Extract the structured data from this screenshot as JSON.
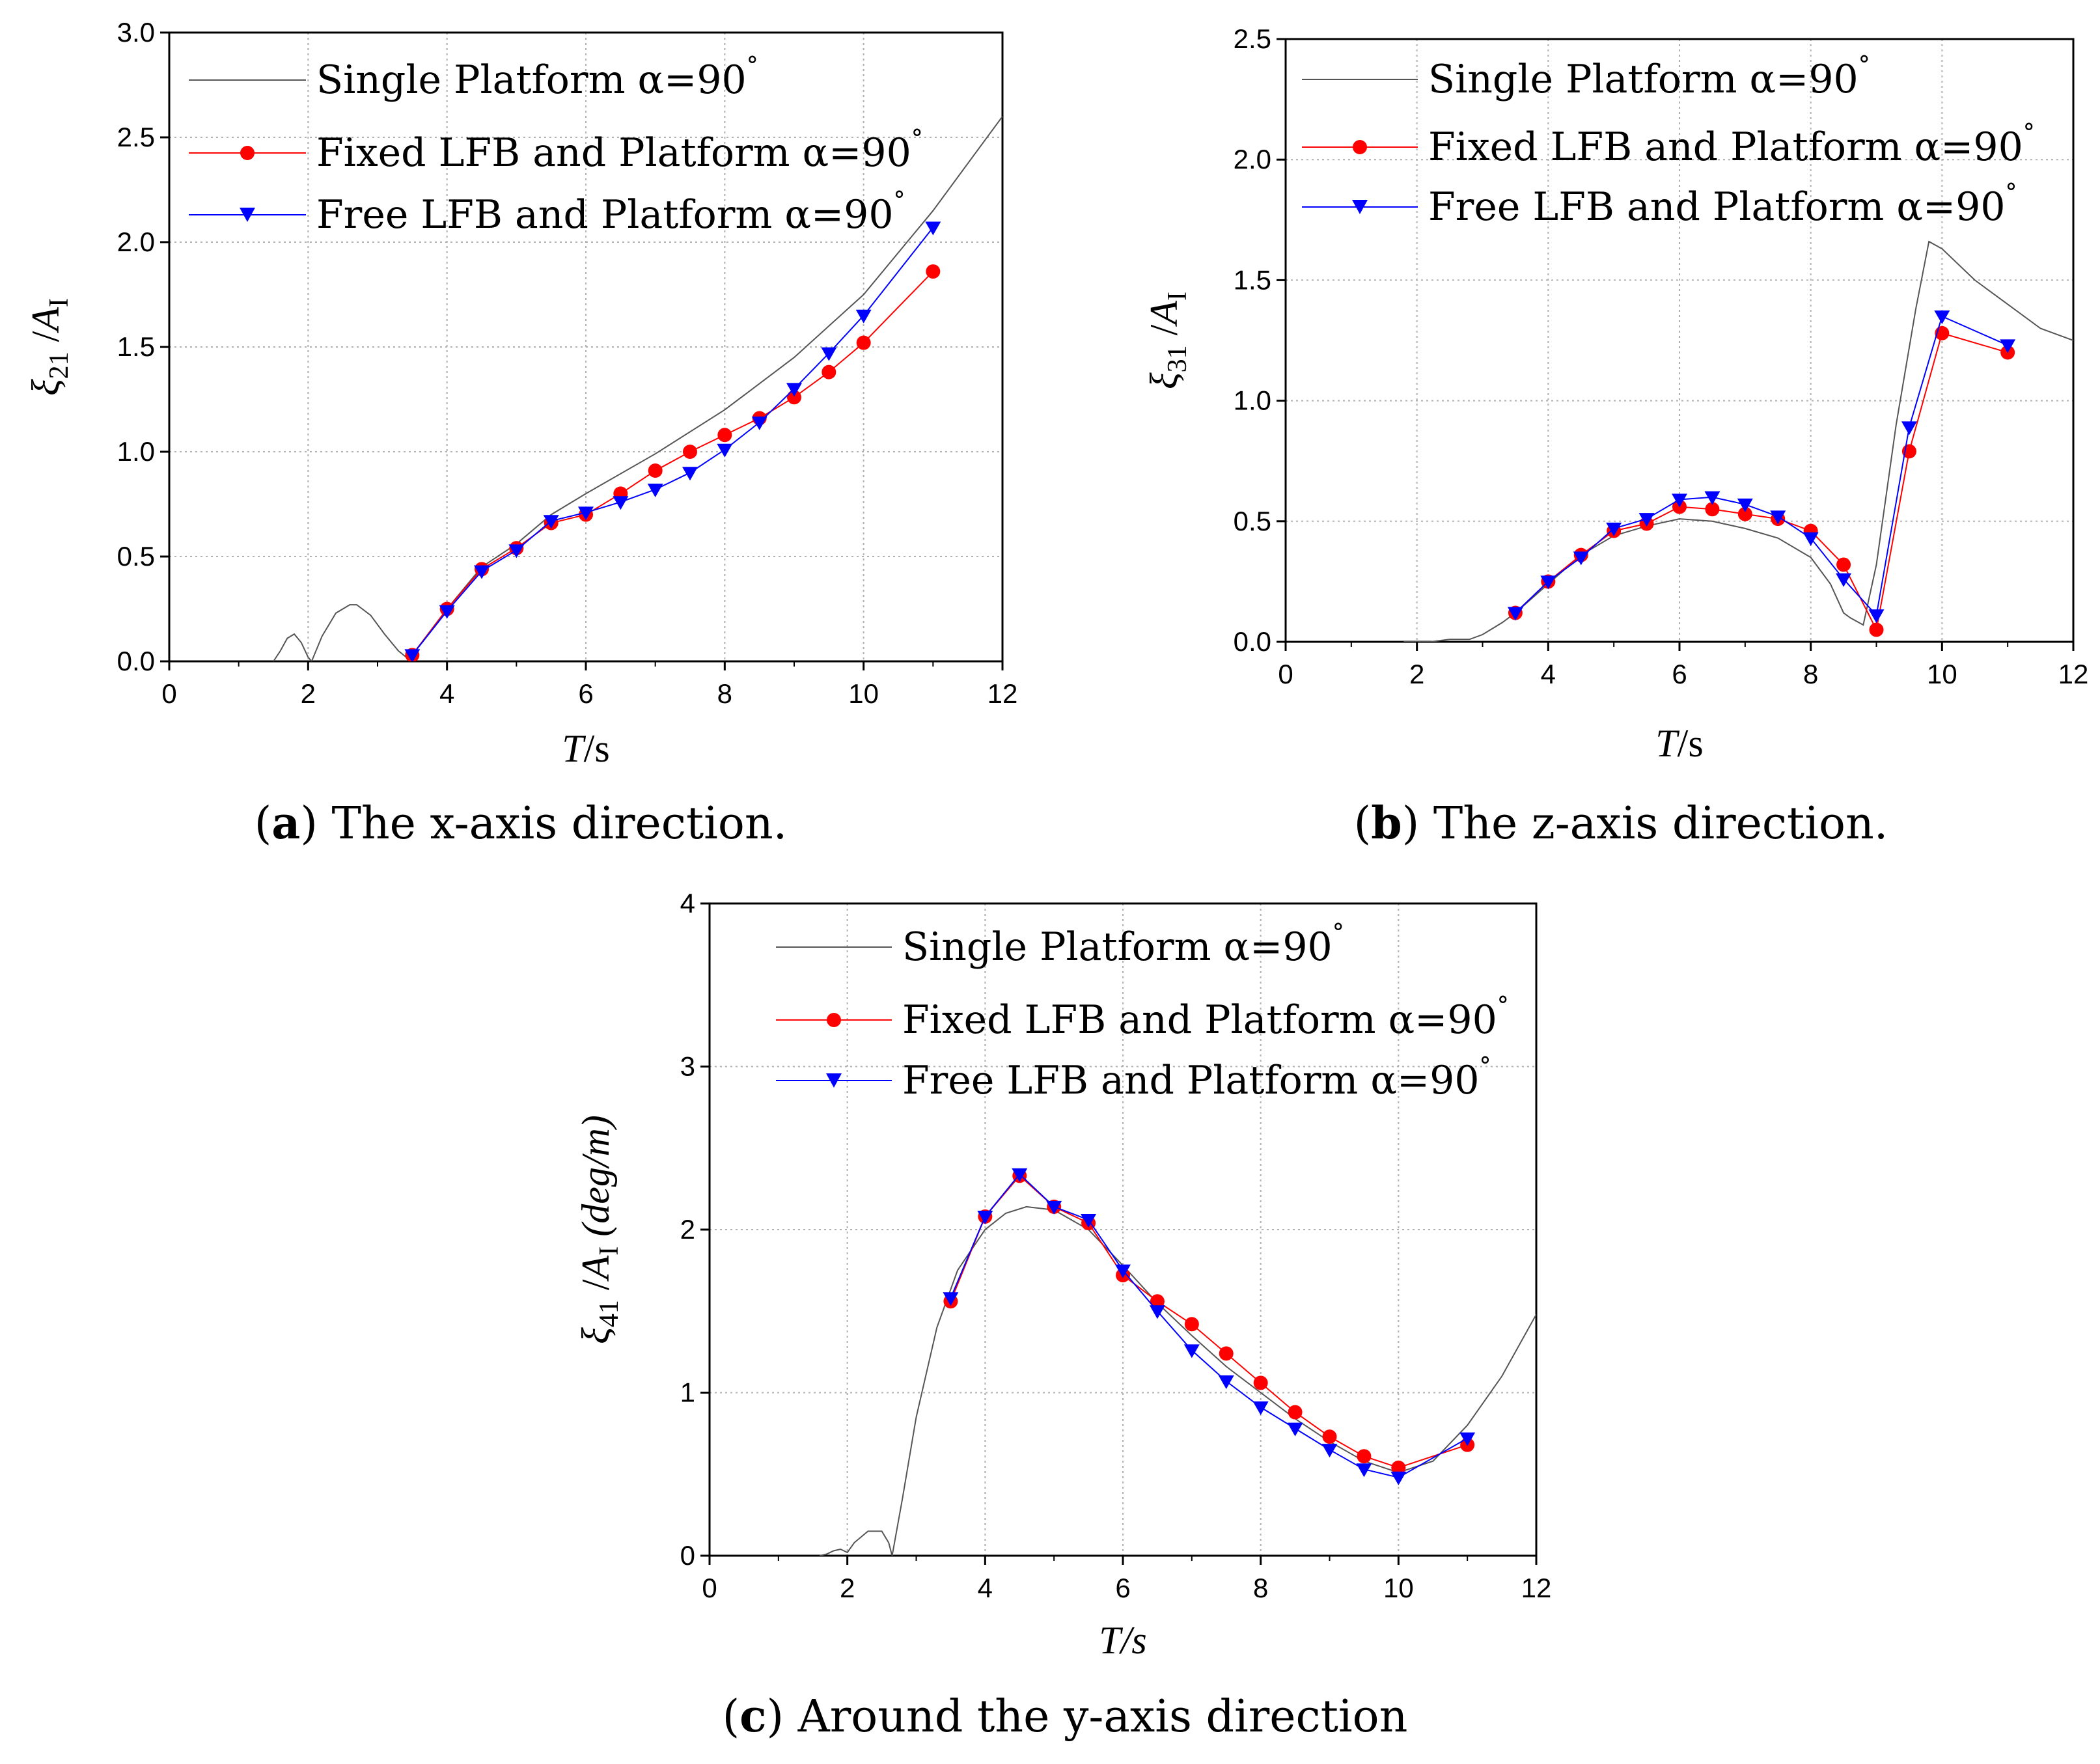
{
  "figure": {
    "symbol_degree": "°"
  },
  "series_style": {
    "Single Platform": {
      "color": "#555555",
      "marker": "none"
    },
    "Fixed LFB and Platform": {
      "color": "#ff0000",
      "marker": "circle"
    },
    "Free LFB and Platform": {
      "color": "#0000ff",
      "marker": "triangle-down"
    }
  },
  "chart_data": [
    {
      "id": "a",
      "type": "line",
      "caption": {
        "letter": "a",
        "open": "(",
        "close": ")",
        "text": " The x-axis direction."
      },
      "ylabel": {
        "main": "ξ",
        "sub": "21",
        "sep": " /",
        "A": "A",
        "Asub": "I",
        "units": ""
      },
      "xlabel": {
        "T": "T",
        "rest": "/s"
      },
      "xlim": [
        0,
        12
      ],
      "ylim": [
        0,
        3.0
      ],
      "xticks": [
        "0",
        "2",
        "4",
        "6",
        "8",
        "10",
        "12"
      ],
      "xtick_values": [
        0,
        2,
        4,
        6,
        8,
        10,
        12
      ],
      "yticks": [
        "0.0",
        "0.5",
        "1.0",
        "1.5",
        "2.0",
        "2.5",
        "3.0"
      ],
      "ytick_values": [
        0,
        0.5,
        1.0,
        1.5,
        2.0,
        2.5,
        3.0
      ],
      "legend_position": "top-left",
      "series": [
        {
          "name": "Single Platform",
          "label": "Single Platform α=90",
          "x": [
            1.5,
            1.6,
            1.7,
            1.8,
            1.9,
            2.0,
            2.05,
            2.2,
            2.4,
            2.6,
            2.7,
            2.9,
            3.1,
            3.3,
            3.45,
            3.5,
            4.0,
            4.5,
            5.0,
            5.5,
            6.0,
            7.0,
            8.0,
            9.0,
            10.0,
            11.0,
            12.0
          ],
          "y": [
            0.0,
            0.05,
            0.11,
            0.13,
            0.09,
            0.02,
            0.0,
            0.12,
            0.23,
            0.27,
            0.27,
            0.22,
            0.13,
            0.05,
            0.01,
            0.03,
            0.25,
            0.45,
            0.56,
            0.7,
            0.8,
            0.99,
            1.2,
            1.45,
            1.75,
            2.15,
            2.6
          ]
        },
        {
          "name": "Fixed LFB and Platform",
          "label": "Fixed LFB and Platform α=90",
          "x": [
            3.5,
            4.0,
            4.5,
            5.0,
            5.5,
            6.0,
            6.5,
            7.0,
            7.5,
            8.0,
            8.5,
            9.0,
            9.5,
            10.0,
            11.0
          ],
          "y": [
            0.03,
            0.25,
            0.44,
            0.54,
            0.66,
            0.7,
            0.8,
            0.91,
            1.0,
            1.08,
            1.16,
            1.26,
            1.38,
            1.52,
            1.86
          ]
        },
        {
          "name": "Free LFB and Platform",
          "label": "Free LFB and Platform α=90",
          "x": [
            3.5,
            4.0,
            4.5,
            5.0,
            5.5,
            6.0,
            6.5,
            7.0,
            7.5,
            8.0,
            8.5,
            9.0,
            9.5,
            10.0,
            11.0
          ],
          "y": [
            0.03,
            0.24,
            0.43,
            0.53,
            0.67,
            0.71,
            0.76,
            0.82,
            0.9,
            1.01,
            1.14,
            1.3,
            1.47,
            1.65,
            2.07
          ]
        }
      ]
    },
    {
      "id": "b",
      "type": "line",
      "caption": {
        "letter": "b",
        "open": "(",
        "close": ")",
        "text": " The z-axis direction."
      },
      "ylabel": {
        "main": "ξ",
        "sub": "31",
        "sep": " /",
        "A": "A",
        "Asub": "I",
        "units": ""
      },
      "xlabel": {
        "T": "T",
        "rest": "/s"
      },
      "xlim": [
        0,
        12
      ],
      "ylim": [
        0,
        2.5
      ],
      "xticks": [
        "0",
        "2",
        "4",
        "6",
        "8",
        "10",
        "12"
      ],
      "xtick_values": [
        0,
        2,
        4,
        6,
        8,
        10,
        12
      ],
      "yticks": [
        "0.0",
        "0.5",
        "1.0",
        "1.5",
        "2.0",
        "2.5"
      ],
      "ytick_values": [
        0,
        0.5,
        1.0,
        1.5,
        2.0,
        2.5
      ],
      "legend_position": "top-left",
      "series": [
        {
          "name": "Single Platform",
          "label": "Single Platform α=90",
          "x": [
            1.8,
            2.2,
            2.5,
            2.8,
            3.0,
            3.3,
            3.5,
            4.0,
            4.5,
            5.0,
            5.5,
            6.0,
            6.5,
            7.0,
            7.5,
            8.0,
            8.3,
            8.5,
            8.6,
            8.8,
            9.0,
            9.3,
            9.6,
            9.8,
            10.0,
            10.5,
            11.0,
            11.5,
            12.0
          ],
          "y": [
            0.0,
            0.0,
            0.01,
            0.01,
            0.03,
            0.08,
            0.12,
            0.24,
            0.36,
            0.44,
            0.48,
            0.51,
            0.5,
            0.47,
            0.43,
            0.35,
            0.24,
            0.12,
            0.1,
            0.07,
            0.32,
            0.9,
            1.38,
            1.66,
            1.63,
            1.5,
            1.4,
            1.3,
            1.25
          ]
        },
        {
          "name": "Fixed LFB and Platform",
          "label": "Fixed LFB and Platform α=90",
          "x": [
            3.5,
            4.0,
            4.5,
            5.0,
            5.5,
            6.0,
            6.5,
            7.0,
            7.5,
            8.0,
            8.5,
            9.0,
            9.5,
            10.0,
            11.0
          ],
          "y": [
            0.12,
            0.25,
            0.36,
            0.46,
            0.49,
            0.56,
            0.55,
            0.53,
            0.51,
            0.46,
            0.32,
            0.05,
            0.79,
            1.28,
            1.2
          ]
        },
        {
          "name": "Free LFB and Platform",
          "label": "Free LFB and Platform α=90",
          "x": [
            3.5,
            4.0,
            4.5,
            5.0,
            5.5,
            6.0,
            6.5,
            7.0,
            7.5,
            8.0,
            8.5,
            9.0,
            9.5,
            10.0,
            11.0
          ],
          "y": [
            0.12,
            0.25,
            0.35,
            0.47,
            0.51,
            0.59,
            0.6,
            0.57,
            0.52,
            0.43,
            0.26,
            0.11,
            0.89,
            1.35,
            1.23
          ]
        }
      ]
    },
    {
      "id": "c",
      "type": "line",
      "caption": {
        "letter": "c",
        "open": "(",
        "close": ")",
        "text": " Around the y-axis direction"
      },
      "ylabel": {
        "main": "ξ",
        "sub": "41",
        "sep": " /",
        "A": "A",
        "Asub": "I",
        "units": "  (deg/m)"
      },
      "xlabel": {
        "T": "T/s",
        "rest": ""
      },
      "xlim": [
        0,
        12
      ],
      "ylim": [
        0,
        4
      ],
      "xticks": [
        "0",
        "2",
        "4",
        "6",
        "8",
        "10",
        "12"
      ],
      "xtick_values": [
        0,
        2,
        4,
        6,
        8,
        10,
        12
      ],
      "yticks": [
        "0",
        "1",
        "2",
        "3",
        "4"
      ],
      "ytick_values": [
        0,
        1,
        2,
        3,
        4
      ],
      "legend_position": "top-left",
      "series": [
        {
          "name": "Single Platform",
          "label": "Single Platform α=90",
          "x": [
            1.6,
            1.7,
            1.8,
            1.9,
            2.0,
            2.1,
            2.3,
            2.5,
            2.6,
            2.65,
            2.8,
            3.0,
            3.3,
            3.6,
            4.0,
            4.3,
            4.6,
            5.0,
            5.5,
            6.0,
            6.5,
            7.0,
            7.5,
            8.0,
            8.5,
            9.0,
            9.5,
            10.0,
            10.5,
            11.0,
            11.5,
            12.0
          ],
          "y": [
            0.0,
            0.01,
            0.03,
            0.04,
            0.02,
            0.08,
            0.15,
            0.15,
            0.08,
            0.0,
            0.35,
            0.85,
            1.4,
            1.75,
            2.0,
            2.1,
            2.14,
            2.12,
            2.0,
            1.78,
            1.55,
            1.35,
            1.16,
            1.0,
            0.84,
            0.7,
            0.58,
            0.51,
            0.58,
            0.8,
            1.1,
            1.48
          ]
        },
        {
          "name": "Fixed LFB and Platform",
          "label": "Fixed LFB and Platform α=90",
          "x": [
            3.5,
            4.0,
            4.5,
            5.0,
            5.5,
            6.0,
            6.5,
            7.0,
            7.5,
            8.0,
            8.5,
            9.0,
            9.5,
            10.0,
            11.0
          ],
          "y": [
            1.56,
            2.08,
            2.33,
            2.14,
            2.04,
            1.72,
            1.56,
            1.42,
            1.24,
            1.06,
            0.88,
            0.73,
            0.61,
            0.54,
            0.68
          ]
        },
        {
          "name": "Free LFB and Platform",
          "label": "Free LFB and Platform α=90",
          "x": [
            3.5,
            4.0,
            4.5,
            5.0,
            5.5,
            6.0,
            6.5,
            7.0,
            7.5,
            8.0,
            8.5,
            9.0,
            9.5,
            10.0,
            11.0
          ],
          "y": [
            1.58,
            2.08,
            2.34,
            2.14,
            2.06,
            1.75,
            1.5,
            1.26,
            1.07,
            0.91,
            0.78,
            0.65,
            0.53,
            0.48,
            0.72
          ]
        }
      ]
    }
  ]
}
